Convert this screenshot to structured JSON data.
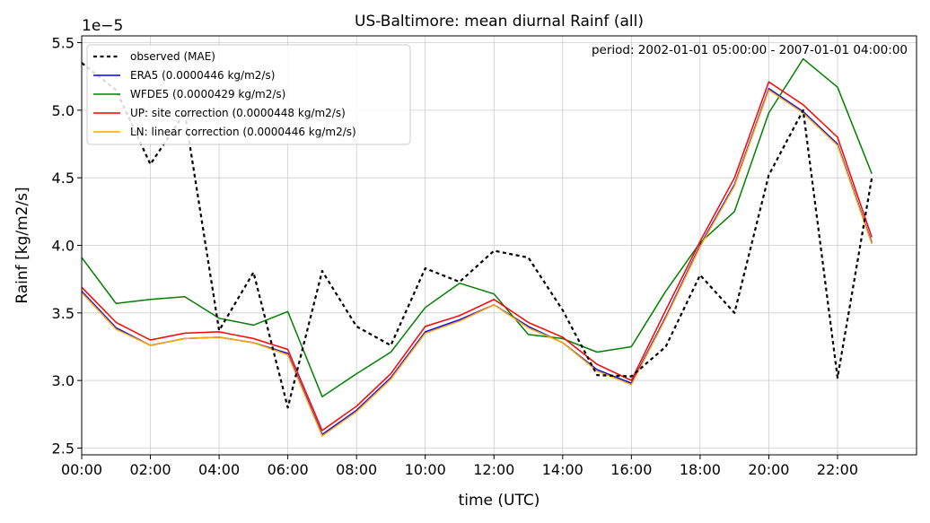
{
  "chart_data": {
    "type": "line",
    "title": "US-Baltimore: mean diurnal Rainf (all)",
    "annotation": "period: 2002-01-01 05:00:00 - 2007-01-01 04:00:00",
    "xlabel": "time (UTC)",
    "ylabel": "Rainf [kg/m2/s]",
    "y_offset_label": "1e−5",
    "y_scale": 1e-05,
    "xlim": [
      0,
      24.3
    ],
    "ylim": [
      2.45,
      5.55
    ],
    "x_ticks": [
      0,
      2,
      4,
      6,
      8,
      10,
      12,
      14,
      16,
      18,
      20,
      22
    ],
    "x_tick_labels": [
      "00:00",
      "02:00",
      "04:00",
      "06:00",
      "08:00",
      "10:00",
      "12:00",
      "14:00",
      "16:00",
      "18:00",
      "20:00",
      "22:00"
    ],
    "y_ticks": [
      2.5,
      3.0,
      3.5,
      4.0,
      4.5,
      5.0,
      5.5
    ],
    "y_tick_labels": [
      "2.5",
      "3.0",
      "3.5",
      "4.0",
      "4.5",
      "5.0",
      "5.5"
    ],
    "grid": true,
    "legend_position": "top-left",
    "x": [
      0,
      1,
      2,
      3,
      4,
      5,
      6,
      7,
      8,
      9,
      10,
      11,
      12,
      13,
      14,
      15,
      16,
      17,
      18,
      19,
      20,
      21,
      22,
      23
    ],
    "series": [
      {
        "name": "observed (MAE)",
        "color": "#000000",
        "dashed": true,
        "values": [
          5.35,
          5.15,
          4.6,
          4.98,
          3.37,
          3.8,
          2.8,
          3.81,
          3.4,
          3.26,
          3.83,
          3.73,
          3.96,
          3.91,
          3.52,
          3.04,
          3.03,
          3.25,
          3.78,
          3.5,
          4.52,
          5.0,
          3.02,
          4.5
        ]
      },
      {
        "name": "ERA5 (0.0000446 kg/m2/s)",
        "color": "#0000ff",
        "dashed": false,
        "values": [
          3.66,
          3.39,
          3.26,
          3.31,
          3.32,
          3.28,
          3.2,
          2.6,
          2.78,
          3.02,
          3.36,
          3.45,
          3.56,
          3.4,
          3.28,
          3.08,
          2.98,
          3.47,
          4.0,
          4.45,
          5.16,
          4.99,
          4.75,
          4.02
        ]
      },
      {
        "name": "WFDE5 (0.0000429 kg/m2/s)",
        "color": "#008000",
        "dashed": false,
        "values": [
          3.91,
          3.57,
          3.6,
          3.62,
          3.46,
          3.41,
          3.51,
          2.88,
          3.05,
          3.21,
          3.54,
          3.72,
          3.64,
          3.34,
          3.31,
          3.21,
          3.25,
          3.66,
          4.02,
          4.25,
          4.98,
          5.38,
          5.17,
          4.53
        ]
      },
      {
        "name": "UP: site correction (0.0000448 kg/m2/s)",
        "color": "#ff0000",
        "dashed": false,
        "values": [
          3.69,
          3.43,
          3.3,
          3.35,
          3.36,
          3.31,
          3.23,
          2.63,
          2.81,
          3.05,
          3.4,
          3.48,
          3.6,
          3.43,
          3.32,
          3.12,
          3.0,
          3.52,
          4.03,
          4.5,
          5.21,
          5.04,
          4.8,
          4.06
        ]
      },
      {
        "name": "LN: linear correction (0.0000446 kg/m2/s)",
        "color": "#ffa500",
        "dashed": false,
        "values": [
          3.65,
          3.38,
          3.26,
          3.31,
          3.32,
          3.28,
          3.19,
          2.59,
          2.77,
          3.01,
          3.35,
          3.44,
          3.56,
          3.39,
          3.28,
          3.07,
          2.97,
          3.46,
          3.99,
          4.44,
          5.15,
          4.98,
          4.74,
          4.01
        ]
      }
    ]
  }
}
